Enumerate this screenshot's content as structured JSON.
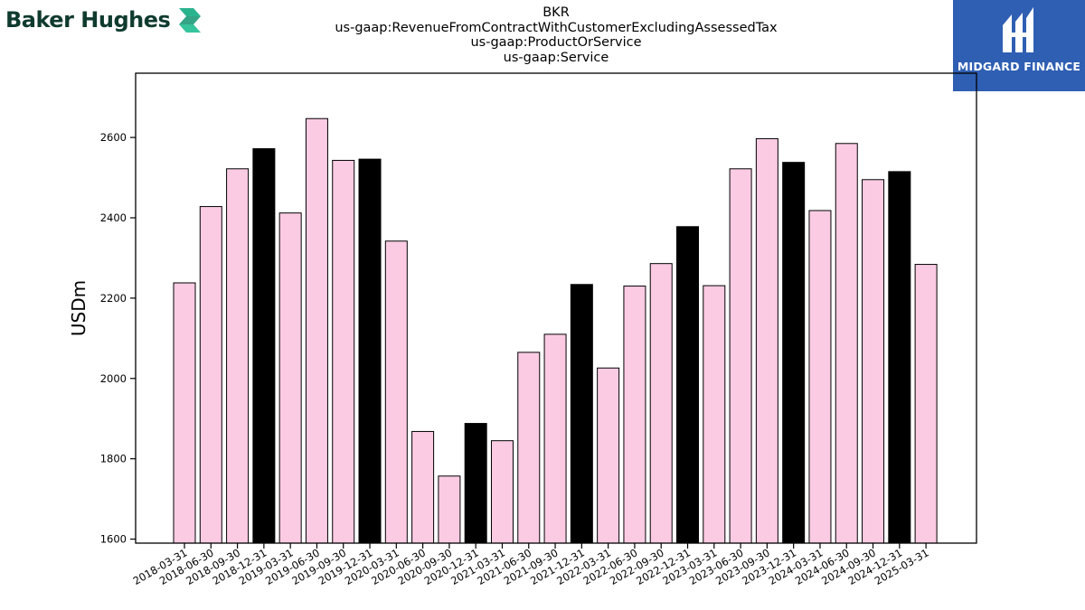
{
  "brand": {
    "left_logo_text": "Baker Hughes",
    "right_logo_text": "MIDGARD FINANCE"
  },
  "colors": {
    "bar_default": "#fbcbe3",
    "bar_year_end": "#000000",
    "bar_edge": "#000000",
    "right_panel": "#2f5fb3"
  },
  "chart_data": {
    "type": "bar",
    "title_lines": [
      "BKR",
      "us-gaap:RevenueFromContractWithCustomerExcludingAssessedTax",
      "us-gaap:ProductOrService",
      "us-gaap:Service"
    ],
    "xlabel": "",
    "ylabel": "USDm",
    "ylim": [
      1590,
      2760
    ],
    "yticks": [
      1600,
      1800,
      2000,
      2200,
      2400,
      2600
    ],
    "grid": false,
    "categories": [
      "2018-03-31",
      "2018-06-30",
      "2018-09-30",
      "2018-12-31",
      "2019-03-31",
      "2019-06-30",
      "2019-09-30",
      "2019-12-31",
      "2020-03-31",
      "2020-06-30",
      "2020-09-30",
      "2020-12-31",
      "2021-03-31",
      "2021-06-30",
      "2021-09-30",
      "2021-12-31",
      "2022-03-31",
      "2022-06-30",
      "2022-09-30",
      "2022-12-31",
      "2023-03-31",
      "2023-06-30",
      "2023-09-30",
      "2023-12-31",
      "2024-03-31",
      "2024-06-30",
      "2024-09-30",
      "2024-12-31",
      "2025-03-31"
    ],
    "values": [
      2238,
      2428,
      2522,
      2572,
      2412,
      2647,
      2543,
      2546,
      2342,
      1868,
      1757,
      1888,
      1845,
      2065,
      2110,
      2234,
      2026,
      2230,
      2286,
      2378,
      2231,
      2522,
      2597,
      2538,
      2418,
      2585,
      2495,
      2515,
      2284
    ],
    "highlight_year_end": true
  }
}
